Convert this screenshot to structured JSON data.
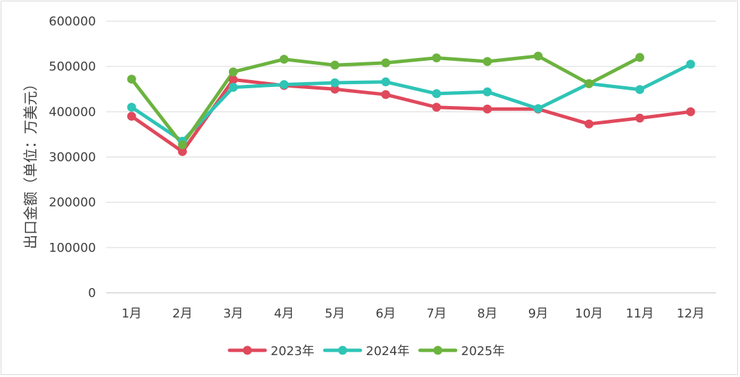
{
  "chart_data": {
    "type": "line",
    "ylabel": "出口金额（单位：万美元）",
    "xlabel": "",
    "title": "",
    "ylim": [
      0,
      600000
    ],
    "yticks": [
      0,
      100000,
      200000,
      300000,
      400000,
      500000,
      600000
    ],
    "ytick_labels": [
      "0",
      "100000",
      "200000",
      "300000",
      "400000",
      "500000",
      "600000"
    ],
    "categories": [
      "1月",
      "2月",
      "3月",
      "4月",
      "5月",
      "6月",
      "7月",
      "8月",
      "9月",
      "10月",
      "11月",
      "12月"
    ],
    "grid": true,
    "legend_position": "bottom",
    "series": [
      {
        "name": "2023年",
        "color": "#e0495c",
        "values": [
          390000,
          312000,
          471000,
          458000,
          450000,
          438000,
          410000,
          406000,
          406000,
          373000,
          386000,
          400000
        ]
      },
      {
        "name": "2024年",
        "color": "#2ec4b6",
        "values": [
          410000,
          335000,
          454000,
          460000,
          464000,
          466000,
          440000,
          444000,
          407000,
          462000,
          449000,
          505000
        ]
      },
      {
        "name": "2025年",
        "color": "#6cb33f",
        "values": [
          472000,
          327000,
          488000,
          516000,
          503000,
          508000,
          519000,
          511000,
          523000,
          462000,
          520000,
          null
        ]
      }
    ]
  }
}
